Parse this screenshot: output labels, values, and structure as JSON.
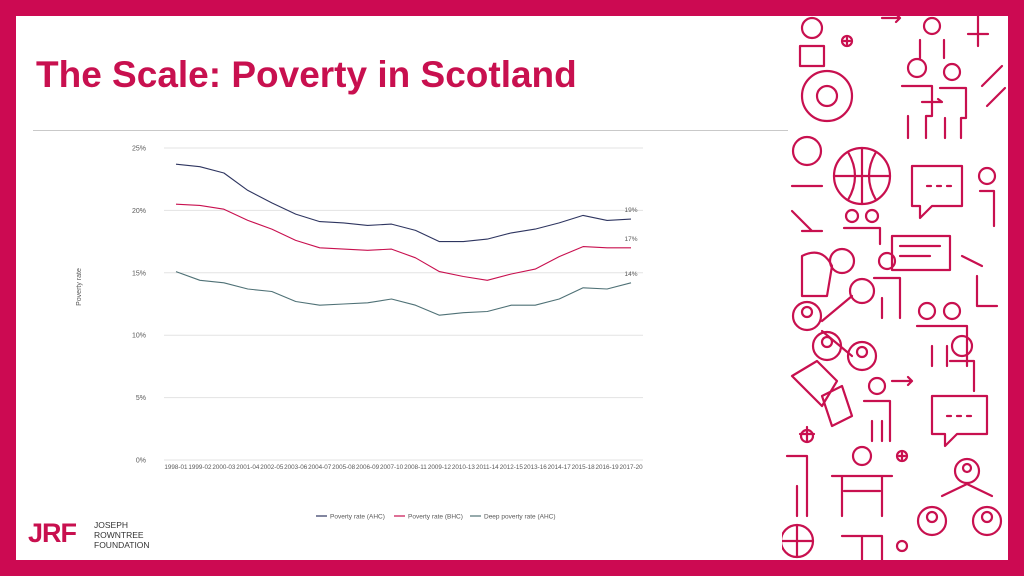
{
  "slide": {
    "title": "The Scale: Poverty in Scotland",
    "logo": {
      "mark": "JRF",
      "lines": [
        "JOSEPH",
        "ROWNTREE",
        "FOUNDATION"
      ]
    },
    "colors": {
      "brand": "#cc0a52",
      "title": "#c8104f"
    }
  },
  "chart_data": {
    "type": "line",
    "title": "",
    "xlabel": "",
    "ylabel": "Poverty rate",
    "ylim": [
      0,
      25
    ],
    "yticks": [
      "0%",
      "5%",
      "10%",
      "15%",
      "20%",
      "25%"
    ],
    "ytick_values": [
      0,
      5,
      10,
      15,
      20,
      25
    ],
    "grid": true,
    "legend": "bottom",
    "categories": [
      "1998-01",
      "1999-02",
      "2000-03",
      "2001-04",
      "2002-05",
      "2003-06",
      "2004-07",
      "2005-08",
      "2006-09",
      "2007-10",
      "2008-11",
      "2009-12",
      "2010-13",
      "2011-14",
      "2012-15",
      "2013-16",
      "2014-17",
      "2015-18",
      "2016-19",
      "2017-20"
    ],
    "series": [
      {
        "name": "Poverty rate (AHC)",
        "color": "#2e3560",
        "end_label": "19%",
        "values": [
          23.7,
          23.5,
          23.0,
          21.6,
          20.6,
          19.7,
          19.1,
          19.0,
          18.8,
          18.9,
          18.4,
          17.5,
          17.5,
          17.7,
          18.2,
          18.5,
          19.0,
          19.6,
          19.2,
          19.3
        ]
      },
      {
        "name": "Poverty rate (BHC)",
        "color": "#c8104f",
        "end_label": "17%",
        "values": [
          20.5,
          20.4,
          20.1,
          19.2,
          18.5,
          17.6,
          17.0,
          16.9,
          16.8,
          16.9,
          16.2,
          15.1,
          14.7,
          14.4,
          14.9,
          15.3,
          16.3,
          17.1,
          17.0,
          17.0
        ]
      },
      {
        "name": "Deep poverty rate (AHC)",
        "color": "#4f7176",
        "end_label": "14%",
        "values": [
          15.1,
          14.4,
          14.2,
          13.7,
          13.5,
          12.7,
          12.4,
          12.5,
          12.6,
          12.9,
          12.4,
          11.6,
          11.8,
          11.9,
          12.4,
          12.4,
          12.9,
          13.8,
          13.7,
          14.2
        ]
      }
    ]
  }
}
